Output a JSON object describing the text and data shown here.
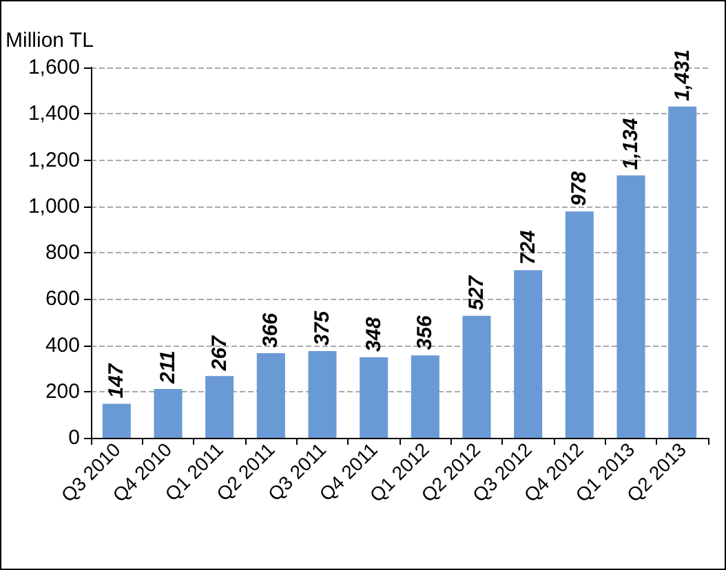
{
  "chart_data": {
    "type": "bar",
    "ylabel": "Million TL",
    "categories": [
      "Q3 2010",
      "Q4 2010",
      "Q1 2011",
      "Q2 2011",
      "Q3 2011",
      "Q4 2011",
      "Q1 2012",
      "Q2 2012",
      "Q3 2012",
      "Q4 2012",
      "Q1 2013",
      "Q2 2013"
    ],
    "values": [
      147,
      211,
      267,
      366,
      375,
      348,
      356,
      527,
      724,
      978,
      1134,
      1431
    ],
    "value_labels": [
      "147",
      "211",
      "267",
      "366",
      "375",
      "348",
      "356",
      "527",
      "724",
      "978",
      "1,134",
      "1,431"
    ],
    "color": "#6a9ad6",
    "ylim": [
      0,
      1600
    ],
    "yticks": [
      0,
      200,
      400,
      600,
      800,
      {
        "value": 1000,
        "label": "1,000"
      },
      {
        "value": 1200,
        "label": "1,200"
      },
      {
        "value": 1400,
        "label": "1,400"
      },
      {
        "value": 1600,
        "label": "1,600"
      }
    ],
    "grid": "y"
  }
}
